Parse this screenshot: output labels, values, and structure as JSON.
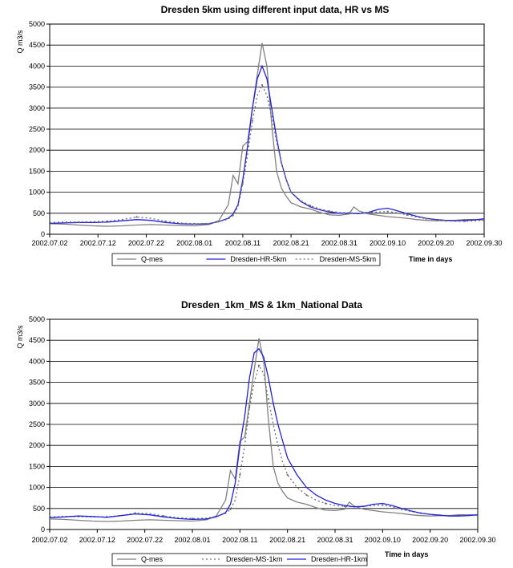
{
  "chart_data": [
    {
      "type": "line",
      "title": "Dresden 5km using different input data, HR vs MS",
      "ylabel": "Q m3/s",
      "xlabel": "Time in days",
      "ylim": [
        0,
        5000
      ],
      "yticks": [
        "0",
        "500",
        "1000",
        "1500",
        "2000",
        "2500",
        "3000",
        "3500",
        "4000",
        "4500",
        "5000"
      ],
      "x_range_days": [
        0,
        90
      ],
      "xticks": [
        "2002.07.02",
        "2002.07.12",
        "2002.07.22",
        "2002.08.01",
        "2002.08.11",
        "2002.08.21",
        "2002.08.31",
        "2002.09.10",
        "2002.09.20",
        "2002.09.30"
      ],
      "grid": "horizontal",
      "legend_position": "bottom",
      "series": [
        {
          "name": "Q-mes",
          "color": "#808080",
          "dash": "solid",
          "x": [
            0,
            3,
            6,
            9,
            12,
            15,
            18,
            21,
            24,
            27,
            30,
            33,
            35,
            37,
            38,
            39,
            40,
            41,
            42,
            43,
            44,
            45,
            46,
            47,
            48,
            49,
            50,
            52,
            54,
            56,
            58,
            60,
            62,
            63,
            64,
            66,
            68,
            70,
            72,
            74,
            76,
            78,
            80,
            82,
            84,
            86,
            88,
            90
          ],
          "y": [
            250,
            240,
            220,
            200,
            190,
            200,
            220,
            230,
            220,
            210,
            200,
            230,
            320,
            700,
            1400,
            1200,
            2100,
            2200,
            3000,
            3800,
            4550,
            4000,
            2600,
            1500,
            1100,
            900,
            750,
            650,
            600,
            520,
            460,
            450,
            480,
            650,
            560,
            480,
            450,
            420,
            400,
            380,
            350,
            330,
            320,
            330,
            330,
            350,
            350,
            340
          ]
        },
        {
          "name": "Dresden-HR-5km",
          "color": "#2020e0",
          "dash": "solid",
          "x": [
            0,
            3,
            6,
            9,
            12,
            15,
            18,
            21,
            24,
            27,
            30,
            33,
            35,
            37,
            38,
            39,
            40,
            41,
            42,
            43,
            44,
            45,
            46,
            47,
            48,
            49,
            50,
            52,
            54,
            56,
            58,
            60,
            62,
            64,
            66,
            68,
            70,
            72,
            74,
            76,
            78,
            80,
            82,
            84,
            86,
            88,
            90
          ],
          "y": [
            260,
            270,
            280,
            280,
            290,
            320,
            350,
            330,
            280,
            250,
            240,
            250,
            300,
            380,
            480,
            700,
            1300,
            2100,
            3000,
            3700,
            4000,
            3700,
            3000,
            2300,
            1700,
            1300,
            1000,
            780,
            650,
            580,
            530,
            500,
            500,
            490,
            520,
            590,
            620,
            560,
            490,
            430,
            380,
            350,
            330,
            320,
            330,
            340,
            370
          ]
        },
        {
          "name": "Dresden-MS-5km",
          "color": "#707070",
          "dash": "2,3",
          "x": [
            0,
            3,
            6,
            9,
            12,
            15,
            18,
            21,
            24,
            27,
            30,
            33,
            35,
            37,
            38,
            39,
            40,
            41,
            42,
            43,
            44,
            45,
            46,
            47,
            48,
            49,
            50,
            52,
            54,
            56,
            58,
            60,
            62,
            64,
            66,
            68,
            70,
            72,
            74,
            76,
            78,
            80,
            82,
            84,
            86,
            88,
            90
          ],
          "y": [
            280,
            290,
            290,
            300,
            310,
            350,
            410,
            380,
            310,
            270,
            250,
            260,
            300,
            360,
            450,
            650,
            1200,
            1900,
            2700,
            3300,
            3550,
            3300,
            2800,
            2200,
            1700,
            1300,
            1000,
            800,
            680,
            600,
            550,
            520,
            510,
            500,
            510,
            530,
            540,
            510,
            460,
            410,
            370,
            340,
            320,
            310,
            310,
            320,
            330
          ]
        }
      ]
    },
    {
      "type": "line",
      "title": "Dresden_1km_MS & 1km_National Data",
      "ylabel": "Q m3/s",
      "xlabel": "Time in days",
      "ylim": [
        0,
        5000
      ],
      "yticks": [
        "0",
        "500",
        "1000",
        "1500",
        "2000",
        "2500",
        "3000",
        "3500",
        "4000",
        "4500",
        "5000"
      ],
      "x_range_days": [
        0,
        90
      ],
      "xticks": [
        "2002.07.02",
        "2002.07.12",
        "2002.07.22",
        "2002.08.01",
        "2002.08.11",
        "2002.08.21",
        "2002.08.31",
        "2002.09.10",
        "2002.09.20",
        "2002.09.30"
      ],
      "grid": "horizontal",
      "legend_position": "bottom",
      "series": [
        {
          "name": "Q-mes",
          "color": "#808080",
          "dash": "solid",
          "x": [
            0,
            3,
            6,
            9,
            12,
            15,
            18,
            21,
            24,
            27,
            30,
            33,
            35,
            37,
            38,
            39,
            40,
            41,
            42,
            43,
            44,
            45,
            46,
            47,
            48,
            49,
            50,
            52,
            54,
            56,
            58,
            60,
            62,
            63,
            64,
            66,
            68,
            70,
            72,
            74,
            76,
            78,
            80,
            82,
            84,
            86,
            88,
            90
          ],
          "y": [
            250,
            240,
            220,
            200,
            190,
            200,
            220,
            230,
            220,
            210,
            200,
            230,
            320,
            700,
            1400,
            1200,
            2100,
            2200,
            3000,
            3800,
            4550,
            4000,
            2600,
            1500,
            1100,
            900,
            750,
            650,
            600,
            520,
            460,
            450,
            480,
            650,
            560,
            480,
            450,
            420,
            400,
            380,
            350,
            330,
            320,
            330,
            330,
            350,
            350,
            340
          ]
        },
        {
          "name": "Dresden-MS-1km",
          "color": "#707070",
          "dash": "2,3",
          "x": [
            0,
            3,
            6,
            9,
            12,
            15,
            18,
            21,
            24,
            27,
            30,
            33,
            35,
            37,
            38,
            39,
            40,
            41,
            42,
            43,
            44,
            45,
            46,
            47,
            48,
            49,
            50,
            52,
            54,
            56,
            58,
            60,
            62,
            64,
            66,
            68,
            70,
            72,
            74,
            76,
            78,
            80,
            82,
            84,
            86,
            88,
            90
          ],
          "y": [
            300,
            310,
            310,
            300,
            300,
            330,
            390,
            380,
            320,
            280,
            260,
            270,
            310,
            380,
            480,
            700,
            1300,
            2000,
            2900,
            3500,
            3900,
            3700,
            3100,
            2500,
            2000,
            1600,
            1300,
            1000,
            820,
            700,
            620,
            570,
            550,
            540,
            550,
            570,
            580,
            540,
            480,
            430,
            390,
            360,
            340,
            330,
            330,
            340,
            350
          ]
        },
        {
          "name": "Dresden-HR-1km",
          "color": "#2020e0",
          "dash": "solid",
          "x": [
            0,
            3,
            6,
            9,
            12,
            15,
            18,
            21,
            24,
            27,
            30,
            33,
            35,
            37,
            38,
            39,
            40,
            41,
            42,
            43,
            44,
            45,
            46,
            47,
            48,
            49,
            50,
            52,
            54,
            56,
            58,
            60,
            62,
            64,
            66,
            68,
            70,
            72,
            74,
            76,
            78,
            80,
            82,
            84,
            86,
            88,
            90
          ],
          "y": [
            280,
            300,
            320,
            310,
            290,
            330,
            370,
            350,
            300,
            260,
            240,
            250,
            300,
            400,
            600,
            1100,
            2000,
            2700,
            3600,
            4200,
            4300,
            4100,
            3600,
            3000,
            2500,
            2100,
            1700,
            1300,
            1000,
            820,
            700,
            620,
            570,
            540,
            550,
            600,
            620,
            570,
            500,
            440,
            390,
            360,
            340,
            320,
            320,
            330,
            350
          ]
        }
      ]
    }
  ]
}
